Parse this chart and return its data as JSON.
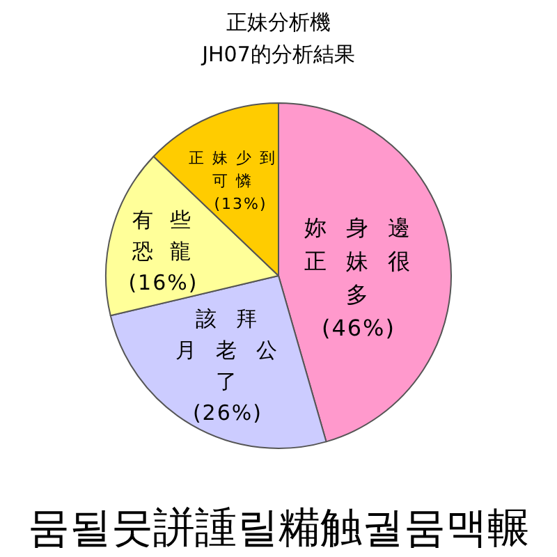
{
  "chart_data": {
    "type": "pie",
    "title": "正妹分析機",
    "subtitle": "JH07的分析結果",
    "categories": [
      "妳身邊正妹很多",
      "該拜月老公了",
      "有些恐龍",
      "正妹少到可憐"
    ],
    "values": [
      46,
      26,
      16,
      13
    ],
    "value_labels": [
      "(46%)",
      "(26%)",
      "(16%)",
      "(13%)"
    ],
    "colors": [
      "#ff99cc",
      "#ccccff",
      "#ffff99",
      "#ffcc00"
    ],
    "annotations": [
      "뭄될뭇誁諥릴糒触궐뭄맥輾"
    ]
  }
}
